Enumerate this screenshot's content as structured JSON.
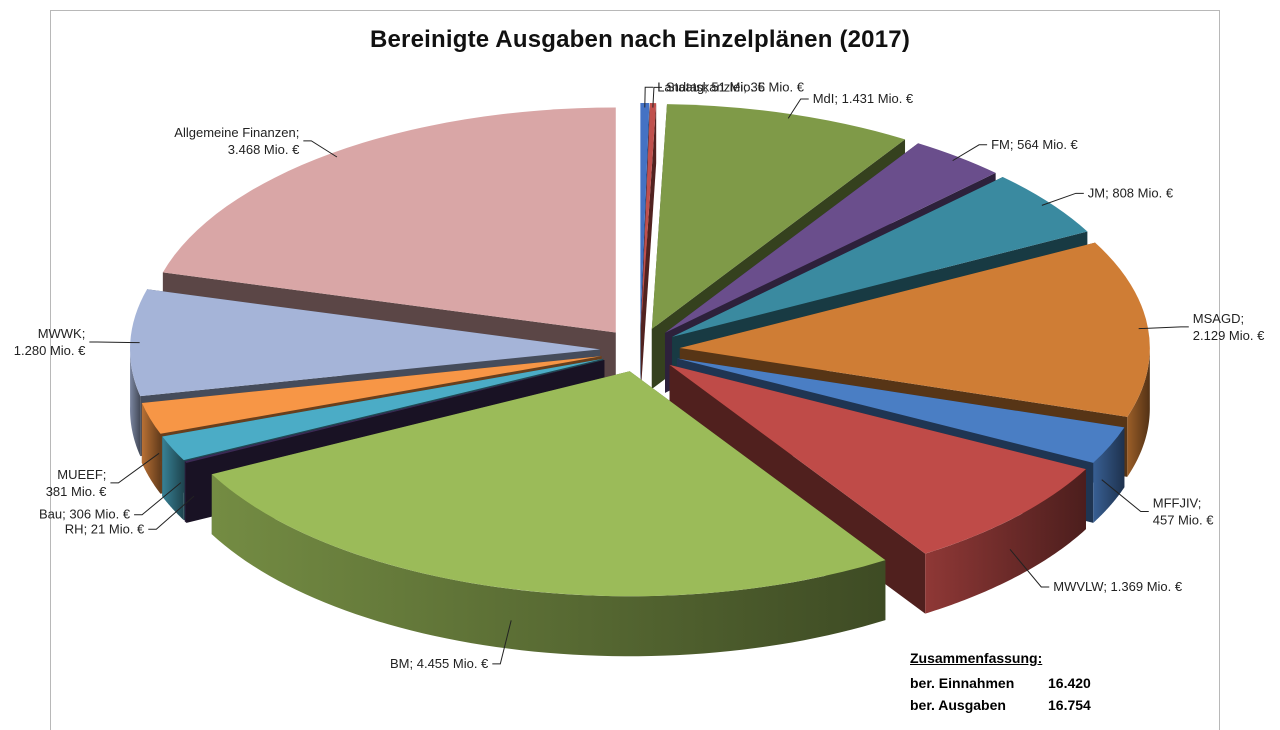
{
  "chart_data": {
    "type": "pie",
    "title": "Bereinigte Ausgaben nach Einzelplänen (2017)",
    "unit": "Mio. €",
    "slices": [
      {
        "name": "Landtag",
        "value": 51,
        "label": "Landtag; 51 Mio. €",
        "color": "#4472c4"
      },
      {
        "name": "Staatskanzlei",
        "value": 35,
        "label": "Staatskanzlei; 35 Mio. €",
        "color": "#c0504d"
      },
      {
        "name": "MdI",
        "value": 1431,
        "label": "MdI; 1.431 Mio. €",
        "color": "#7f9a48"
      },
      {
        "name": "FM",
        "value": 564,
        "label": "FM; 564 Mio. €",
        "color": "#6a4e8c"
      },
      {
        "name": "JM",
        "value": 808,
        "label": "JM; 808 Mio. €",
        "color": "#3a8aa0"
      },
      {
        "name": "MSAGD",
        "value": 2129,
        "label1": "MSAGD;",
        "label2": "2.129 Mio. €",
        "color": "#cf7d35"
      },
      {
        "name": "MFFJIV",
        "value": 457,
        "label1": "MFFJIV;",
        "label2": "457 Mio. €",
        "color": "#4a7ec4"
      },
      {
        "name": "MWVLW",
        "value": 1369,
        "label": "MWVLW; 1.369 Mio. €",
        "color": "#bf4b48"
      },
      {
        "name": "BM",
        "value": 4455,
        "label": "BM; 4.455 Mio. €",
        "color": "#9bbb59"
      },
      {
        "name": "RH",
        "value": 21,
        "label": "RH; 21 Mio. €",
        "color": "#3c2a55"
      },
      {
        "name": "Bau",
        "value": 306,
        "label": "Bau; 306 Mio. €",
        "color": "#4bacc6"
      },
      {
        "name": "MUEEF",
        "value": 381,
        "label1": "MUEEF;",
        "label2": "381 Mio. €",
        "color": "#f79646"
      },
      {
        "name": "MWWK",
        "value": 1280,
        "label1": "MWWK;",
        "label2": "1.280 Mio. €",
        "color": "#a5b4d8"
      },
      {
        "name": "Allgemeine Finanzen",
        "value": 3468,
        "label1": "Allgemeine Finanzen;",
        "label2": "3.468 Mio. €",
        "color": "#d9a6a6"
      }
    ]
  },
  "summary": {
    "heading": "Zusammenfassung:",
    "rows": [
      {
        "label": "ber. Einnahmen",
        "value": "16.420"
      },
      {
        "label": "ber. Ausgaben",
        "value": "16.754"
      }
    ]
  }
}
